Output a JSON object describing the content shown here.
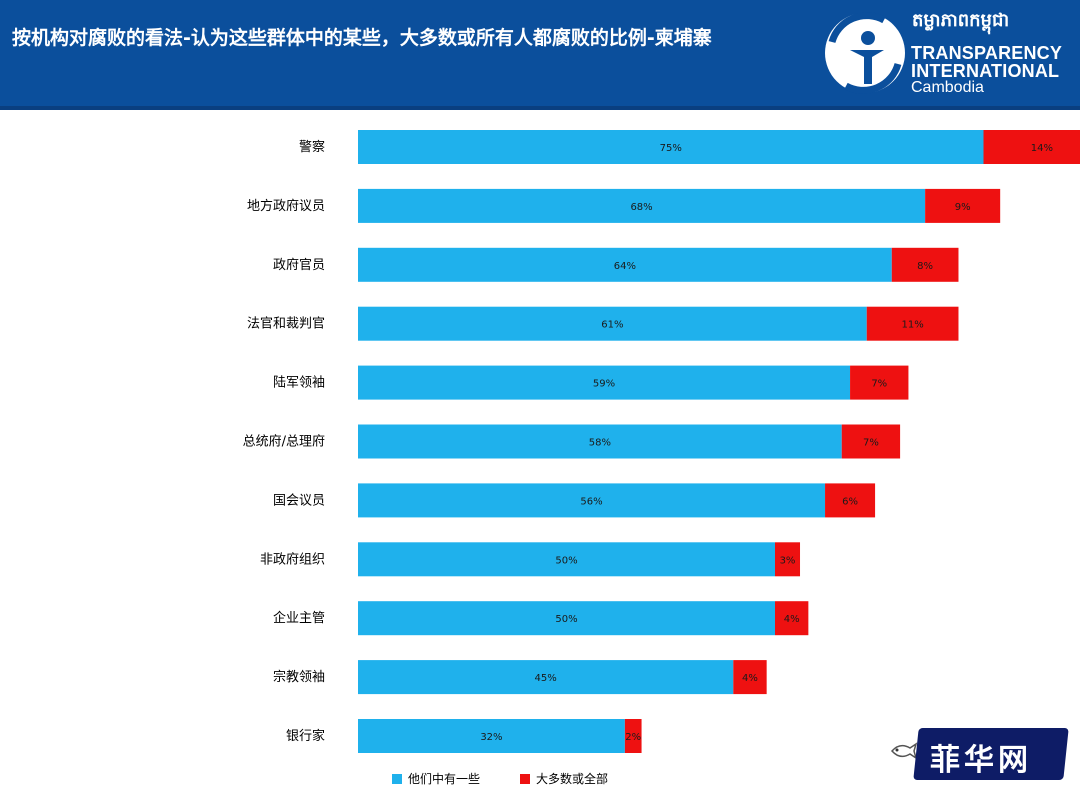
{
  "header": {
    "title": "按机构对腐败的看法-认为这些群体中的某些，大多数或所有人都腐败的比例-柬埔寨",
    "logo": {
      "khmer": "តម្លាភាពកម្ពុជា",
      "line1": "TRANSPARENCY",
      "line2": "INTERNATIONAL",
      "line3": "Cambodia"
    }
  },
  "colors": {
    "header_bg": "#0b4f9c",
    "series_some": "#1fb1ec",
    "series_most": "#ee1111"
  },
  "chart_data": {
    "type": "bar",
    "orientation": "horizontal",
    "stacked": true,
    "categories": [
      "警察",
      "地方政府议员",
      "政府官员",
      "法官和裁判官",
      "陆军领袖",
      "总统府/总理府",
      "国会议员",
      "非政府组织",
      "企业主管",
      "宗教领袖",
      "银行家"
    ],
    "series": [
      {
        "name": "他们中有一些",
        "color": "#1fb1ec",
        "values": [
          75,
          68,
          64,
          61,
          59,
          58,
          56,
          50,
          50,
          45,
          32
        ],
        "labels": [
          "75%",
          "68%",
          "64%",
          "61%",
          "59%",
          "58%",
          "56%",
          "50%",
          "50%",
          "45%",
          "32%"
        ]
      },
      {
        "name": "大多数或全部",
        "color": "#ee1111",
        "values": [
          14,
          9,
          8,
          11,
          7,
          7,
          6,
          3,
          4,
          4,
          2
        ],
        "labels": [
          "14%",
          "9%",
          "8%",
          "11%",
          "7%",
          "7%",
          "6%",
          "3%",
          "4%",
          "4%",
          "2%"
        ]
      }
    ],
    "xlim": [
      0,
      100
    ],
    "grid": false,
    "legend_position": "bottom"
  },
  "watermark": {
    "text": "菲华网",
    "icon": "fish-icon"
  }
}
